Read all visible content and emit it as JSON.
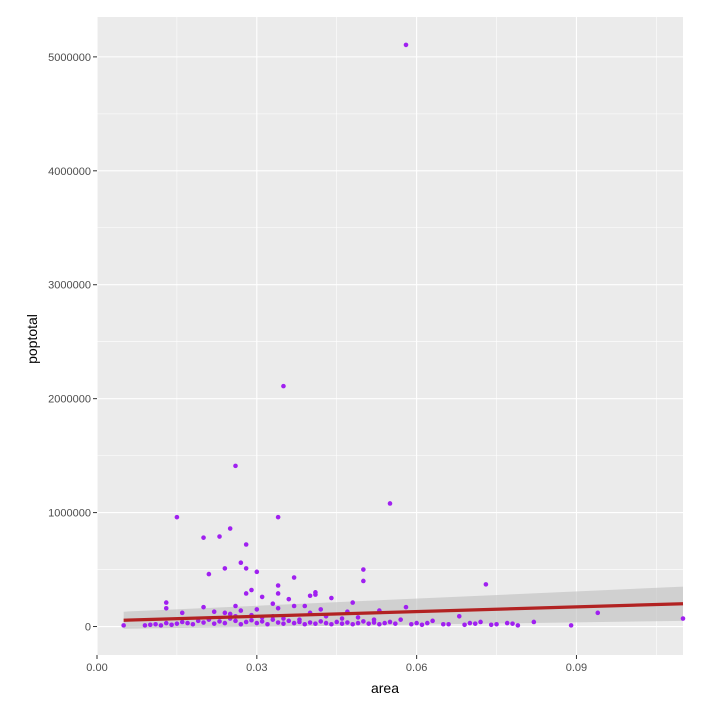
{
  "chart_data": {
    "type": "scatter",
    "title": "",
    "xlabel": "area",
    "ylabel": "poptotal",
    "xlim": [
      0.0,
      0.11
    ],
    "ylim": [
      -250000,
      5350000
    ],
    "x_ticks": [
      0.0,
      0.03,
      0.06,
      0.09
    ],
    "x_tick_labels": [
      "0.00",
      "0.03",
      "0.06",
      "0.09"
    ],
    "y_ticks": [
      0,
      1000000,
      2000000,
      3000000,
      4000000,
      5000000
    ],
    "y_tick_labels": [
      "0",
      "1000000",
      "2000000",
      "3000000",
      "4000000",
      "5000000"
    ],
    "grid": true,
    "colors": {
      "panel": "#ebebeb",
      "grid_major": "#ffffff",
      "points": "#a020f0",
      "trend_line": "#b22222",
      "confidence_band": "#bebebe"
    },
    "trend_line": {
      "method": "lm",
      "x": [
        0.005,
        0.11
      ],
      "y": [
        55000,
        200000
      ],
      "ci_lower": [
        -20000,
        50000
      ],
      "ci_upper": [
        130000,
        350000
      ]
    },
    "points": [
      [
        0.058,
        5105000
      ],
      [
        0.035,
        2110000
      ],
      [
        0.026,
        1410000
      ],
      [
        0.055,
        1080000
      ],
      [
        0.015,
        960000
      ],
      [
        0.034,
        960000
      ],
      [
        0.025,
        860000
      ],
      [
        0.02,
        780000
      ],
      [
        0.023,
        790000
      ],
      [
        0.028,
        720000
      ],
      [
        0.027,
        560000
      ],
      [
        0.028,
        510000
      ],
      [
        0.03,
        480000
      ],
      [
        0.024,
        510000
      ],
      [
        0.021,
        460000
      ],
      [
        0.037,
        430000
      ],
      [
        0.05,
        500000
      ],
      [
        0.05,
        400000
      ],
      [
        0.073,
        370000
      ],
      [
        0.034,
        360000
      ],
      [
        0.029,
        320000
      ],
      [
        0.028,
        290000
      ],
      [
        0.041,
        300000
      ],
      [
        0.041,
        280000
      ],
      [
        0.034,
        290000
      ],
      [
        0.031,
        260000
      ],
      [
        0.044,
        250000
      ],
      [
        0.04,
        270000
      ],
      [
        0.039,
        180000
      ],
      [
        0.048,
        210000
      ],
      [
        0.036,
        240000
      ],
      [
        0.033,
        200000
      ],
      [
        0.026,
        180000
      ],
      [
        0.02,
        170000
      ],
      [
        0.013,
        210000
      ],
      [
        0.013,
        160000
      ],
      [
        0.034,
        160000
      ],
      [
        0.037,
        180000
      ],
      [
        0.03,
        150000
      ],
      [
        0.027,
        140000
      ],
      [
        0.022,
        130000
      ],
      [
        0.025,
        110000
      ],
      [
        0.024,
        120000
      ],
      [
        0.016,
        120000
      ],
      [
        0.058,
        170000
      ],
      [
        0.053,
        140000
      ],
      [
        0.047,
        130000
      ],
      [
        0.042,
        150000
      ],
      [
        0.026,
        90000
      ],
      [
        0.029,
        100000
      ],
      [
        0.031,
        80000
      ],
      [
        0.033,
        90000
      ],
      [
        0.035,
        70000
      ],
      [
        0.038,
        60000
      ],
      [
        0.04,
        120000
      ],
      [
        0.043,
        90000
      ],
      [
        0.046,
        70000
      ],
      [
        0.049,
        80000
      ],
      [
        0.052,
        60000
      ],
      [
        0.055,
        40000
      ],
      [
        0.057,
        60000
      ],
      [
        0.06,
        30000
      ],
      [
        0.063,
        50000
      ],
      [
        0.065,
        20000
      ],
      [
        0.068,
        90000
      ],
      [
        0.07,
        30000
      ],
      [
        0.072,
        40000
      ],
      [
        0.075,
        20000
      ],
      [
        0.077,
        30000
      ],
      [
        0.079,
        10000
      ],
      [
        0.082,
        40000
      ],
      [
        0.089,
        10000
      ],
      [
        0.094,
        120000
      ],
      [
        0.11,
        70000
      ],
      [
        0.005,
        10000
      ],
      [
        0.009,
        10000
      ],
      [
        0.01,
        15000
      ],
      [
        0.011,
        20000
      ],
      [
        0.012,
        10000
      ],
      [
        0.013,
        30000
      ],
      [
        0.014,
        15000
      ],
      [
        0.015,
        25000
      ],
      [
        0.016,
        40000
      ],
      [
        0.017,
        30000
      ],
      [
        0.018,
        20000
      ],
      [
        0.019,
        50000
      ],
      [
        0.02,
        35000
      ],
      [
        0.021,
        60000
      ],
      [
        0.022,
        25000
      ],
      [
        0.023,
        45000
      ],
      [
        0.024,
        30000
      ],
      [
        0.025,
        70000
      ],
      [
        0.026,
        50000
      ],
      [
        0.027,
        20000
      ],
      [
        0.028,
        40000
      ],
      [
        0.029,
        55000
      ],
      [
        0.03,
        30000
      ],
      [
        0.031,
        45000
      ],
      [
        0.032,
        20000
      ],
      [
        0.033,
        60000
      ],
      [
        0.034,
        35000
      ],
      [
        0.035,
        25000
      ],
      [
        0.036,
        50000
      ],
      [
        0.037,
        30000
      ],
      [
        0.038,
        40000
      ],
      [
        0.039,
        20000
      ],
      [
        0.04,
        35000
      ],
      [
        0.041,
        25000
      ],
      [
        0.042,
        45000
      ],
      [
        0.043,
        30000
      ],
      [
        0.044,
        20000
      ],
      [
        0.045,
        40000
      ],
      [
        0.046,
        25000
      ],
      [
        0.047,
        35000
      ],
      [
        0.048,
        20000
      ],
      [
        0.049,
        30000
      ],
      [
        0.05,
        45000
      ],
      [
        0.051,
        25000
      ],
      [
        0.052,
        35000
      ],
      [
        0.053,
        20000
      ],
      [
        0.054,
        30000
      ],
      [
        0.056,
        25000
      ],
      [
        0.059,
        20000
      ],
      [
        0.061,
        15000
      ],
      [
        0.062,
        30000
      ],
      [
        0.066,
        20000
      ],
      [
        0.069,
        15000
      ],
      [
        0.071,
        25000
      ],
      [
        0.074,
        15000
      ],
      [
        0.078,
        25000
      ]
    ]
  }
}
